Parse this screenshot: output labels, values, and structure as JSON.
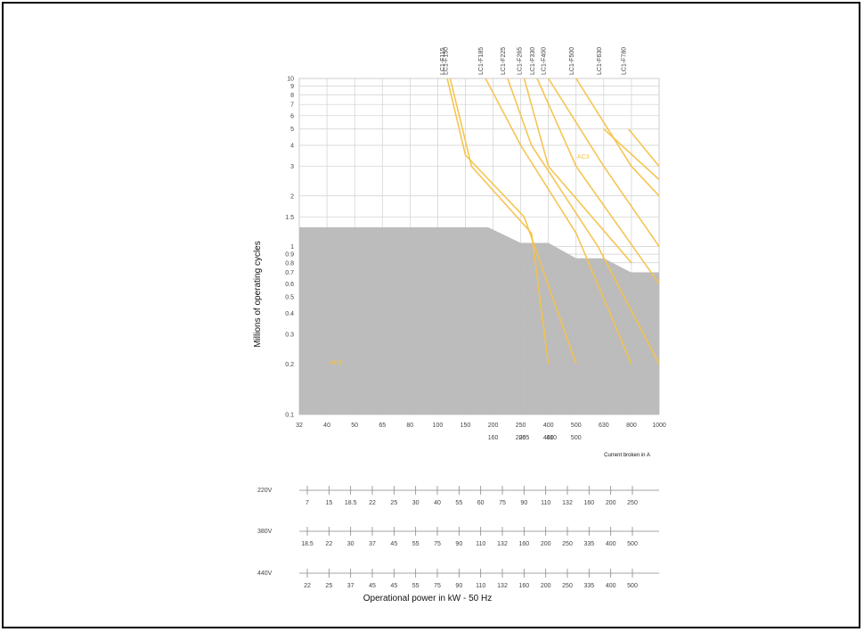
{
  "chart_data": {
    "type": "line",
    "ylabel": "Millions of operating cycles",
    "xlabel": "Operational power in  kW - 50 Hz",
    "x_current_label": "Current broken in A",
    "y_scale": "log",
    "y_ticks": [
      0.1,
      0.2,
      0.3,
      0.4,
      0.5,
      0.6,
      0.7,
      0.8,
      0.9,
      1,
      1.5,
      2,
      3,
      4,
      5,
      6,
      7,
      8,
      9,
      10
    ],
    "y_tick_labels": [
      "0.1",
      "0.2",
      "0.3",
      "0.4",
      "0.5",
      "0.6",
      "0.7",
      "0.8",
      "0.9",
      "1",
      "1.5",
      "2",
      "3",
      "4",
      "5",
      "6",
      "7",
      "8",
      "9",
      "10"
    ],
    "x_ticks_top": [
      "32",
      "40",
      "50",
      "65",
      "80",
      "100",
      "150",
      "200",
      "250",
      "400",
      "500",
      "630",
      "800",
      "1000"
    ],
    "x_ticks_bottom": [
      "160",
      "200",
      "265",
      "400",
      "410",
      "500"
    ],
    "series": [
      {
        "name": "LC1-F115",
        "points": [
          [
            115,
            10
          ],
          [
            150,
            3.5
          ],
          [
            265,
            1.5
          ],
          [
            500,
            0.2
          ]
        ]
      },
      {
        "name": "LC1-F150",
        "points": [
          [
            120,
            10
          ],
          [
            160,
            3.0
          ],
          [
            300,
            1.2
          ],
          [
            400,
            0.2
          ]
        ]
      },
      {
        "name": "LC1-F185",
        "points": [
          [
            185,
            10
          ],
          [
            250,
            4.0
          ],
          [
            500,
            1.2
          ],
          [
            800,
            0.2
          ]
        ]
      },
      {
        "name": "LC1-F225",
        "points": [
          [
            225,
            10
          ],
          [
            300,
            4.0
          ],
          [
            600,
            1.0
          ],
          [
            1000,
            0.2
          ]
        ]
      },
      {
        "name": "LC1-F265",
        "points": [
          [
            265,
            10
          ],
          [
            400,
            3.0
          ],
          [
            800,
            0.8
          ]
        ]
      },
      {
        "name": "LC1-F330",
        "points": [
          [
            330,
            10
          ],
          [
            500,
            3.0
          ],
          [
            1000,
            0.6
          ]
        ]
      },
      {
        "name": "LC1-F400",
        "points": [
          [
            400,
            10
          ],
          [
            630,
            3.0
          ],
          [
            1000,
            1.0
          ]
        ]
      },
      {
        "name": "LC1-F500",
        "points": [
          [
            500,
            10
          ],
          [
            800,
            3.0
          ],
          [
            1000,
            2.0
          ]
        ]
      },
      {
        "name": "LC1-F630",
        "points": [
          [
            630,
            5.0
          ],
          [
            1000,
            2.5
          ]
        ]
      },
      {
        "name": "LC1-F780",
        "points": [
          [
            780,
            5.0
          ],
          [
            1000,
            3.0
          ]
        ]
      }
    ],
    "series_label_color": "#F4C24A",
    "annotation_top_right": "AC3",
    "annotation_region": "AC4",
    "shaded_region_color": "#B8B8B8",
    "voltage_rows": [
      {
        "label": "220V",
        "values": [
          "7",
          "15",
          "18.5",
          "22",
          "25",
          "30",
          "40",
          "55",
          "60",
          "75",
          "90",
          "110",
          "132",
          "160",
          "200",
          "250"
        ]
      },
      {
        "label": "380V",
        "values": [
          "18.5",
          "22",
          "30",
          "37",
          "45",
          "55",
          "75",
          "90",
          "110",
          "132",
          "160",
          "200",
          "250",
          "335",
          "400",
          "500"
        ]
      },
      {
        "label": "440V",
        "values": [
          "22",
          "25",
          "37",
          "45",
          "45",
          "55",
          "75",
          "90",
          "110",
          "132",
          "160",
          "200",
          "250",
          "335",
          "400",
          "500"
        ]
      }
    ]
  }
}
